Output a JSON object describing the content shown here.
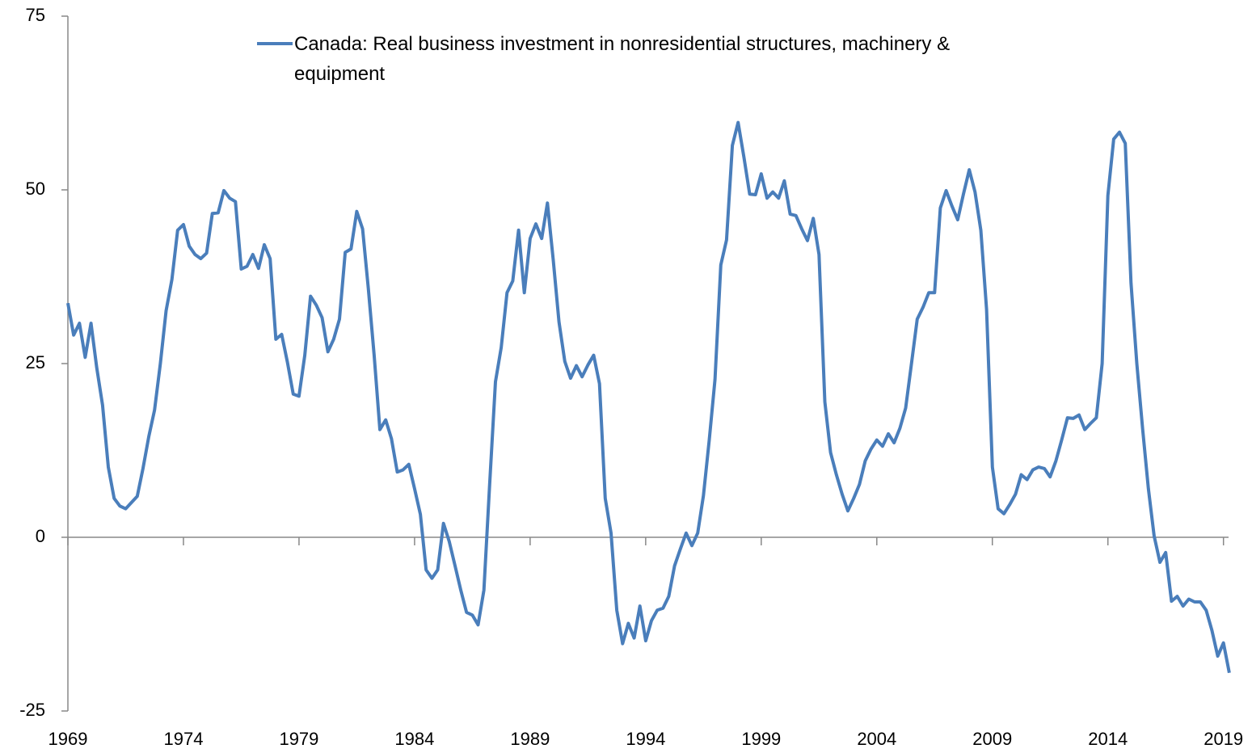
{
  "chart_data": {
    "type": "line",
    "x": [
      1969,
      1969.25,
      1969.5,
      1969.75,
      1970,
      1970.25,
      1970.5,
      1970.75,
      1971,
      1971.25,
      1971.5,
      1971.75,
      1972,
      1972.25,
      1972.5,
      1972.75,
      1973,
      1973.25,
      1973.5,
      1973.75,
      1974,
      1974.25,
      1974.5,
      1974.75,
      1975,
      1975.25,
      1975.5,
      1975.75,
      1976,
      1976.25,
      1976.5,
      1976.75,
      1977,
      1977.25,
      1977.5,
      1977.75,
      1978,
      1978.25,
      1978.5,
      1978.75,
      1979,
      1979.25,
      1979.5,
      1979.75,
      1980,
      1980.25,
      1980.5,
      1980.75,
      1981,
      1981.25,
      1981.5,
      1981.75,
      1982,
      1982.25,
      1982.5,
      1982.75,
      1983,
      1983.25,
      1983.5,
      1983.75,
      1984,
      1984.25,
      1984.5,
      1984.75,
      1985,
      1985.25,
      1985.5,
      1985.75,
      1986,
      1986.25,
      1986.5,
      1986.75,
      1987,
      1987.25,
      1987.5,
      1987.75,
      1988,
      1988.25,
      1988.5,
      1988.75,
      1989,
      1989.25,
      1989.5,
      1989.75,
      1990,
      1990.25,
      1990.5,
      1990.75,
      1991,
      1991.25,
      1991.5,
      1991.75,
      1992,
      1992.25,
      1992.5,
      1992.75,
      1993,
      1993.25,
      1993.5,
      1993.75,
      1994,
      1994.25,
      1994.5,
      1994.75,
      1995,
      1995.25,
      1995.5,
      1995.75,
      1996,
      1996.25,
      1996.5,
      1996.75,
      1997,
      1997.25,
      1997.5,
      1997.75,
      1998,
      1998.25,
      1998.5,
      1998.75,
      1999,
      1999.25,
      1999.5,
      1999.75,
      2000,
      2000.25,
      2000.5,
      2000.75,
      2001,
      2001.25,
      2001.5,
      2001.75,
      2002,
      2002.25,
      2002.5,
      2002.75,
      2003,
      2003.25,
      2003.5,
      2003.75,
      2004,
      2004.25,
      2004.5,
      2004.75,
      2005,
      2005.25,
      2005.5,
      2005.75,
      2006,
      2006.25,
      2006.5,
      2006.75,
      2007,
      2007.25,
      2007.5,
      2007.75,
      2008,
      2008.25,
      2008.5,
      2008.75,
      2009,
      2009.25,
      2009.5,
      2009.75,
      2010,
      2010.25,
      2010.5,
      2010.75,
      2011,
      2011.25,
      2011.5,
      2011.75,
      2012,
      2012.25,
      2012.5,
      2012.75,
      2013,
      2013.25,
      2013.5,
      2013.75,
      2014,
      2014.25,
      2014.5,
      2014.75,
      2015,
      2015.25,
      2015.5,
      2015.75,
      2016,
      2016.25,
      2016.5,
      2016.75,
      2017,
      2017.25,
      2017.5,
      2017.75,
      2018,
      2018.25,
      2018.5,
      2018.75,
      2019,
      2019.25
    ],
    "series": [
      {
        "name": "Canada: Real business investment in nonresidential structures, machinery & equipment",
        "color": "#4a7ebb",
        "values": [
          33.7,
          29.1,
          30.8,
          25.9,
          30.8,
          24.4,
          19.0,
          10.1,
          5.6,
          4.5,
          4.1,
          5.0,
          5.9,
          9.9,
          14.5,
          18.3,
          25.0,
          32.6,
          37.1,
          44.2,
          45.0,
          41.9,
          40.7,
          40.1,
          40.9,
          46.6,
          46.7,
          49.9,
          48.8,
          48.3,
          38.6,
          39.0,
          40.7,
          38.7,
          42.1,
          40.1,
          28.5,
          29.2,
          25.2,
          20.6,
          20.3,
          26.2,
          34.7,
          33.4,
          31.6,
          26.7,
          28.5,
          31.4,
          41.0,
          41.5,
          46.9,
          44.4,
          35.8,
          26.2,
          15.5,
          16.9,
          14.2,
          9.4,
          9.7,
          10.5,
          7.0,
          3.3,
          -4.7,
          -5.9,
          -4.7,
          2.0,
          -0.6,
          -4.1,
          -7.6,
          -10.8,
          -11.2,
          -12.6,
          -7.6,
          7.6,
          22.4,
          27.3,
          35.2,
          36.9,
          44.2,
          35.2,
          43.0,
          45.1,
          43.0,
          48.1,
          39.9,
          31.0,
          25.3,
          22.9,
          24.7,
          23.1,
          24.8,
          26.2,
          22.1,
          5.6,
          0.6,
          -10.5,
          -15.3,
          -12.4,
          -14.5,
          -9.9,
          -14.9,
          -12.0,
          -10.5,
          -10.2,
          -8.5,
          -4.1,
          -1.7,
          0.6,
          -1.2,
          0.6,
          6.0,
          14.0,
          22.7,
          39.2,
          42.8,
          56.4,
          59.7,
          54.7,
          49.4,
          49.3,
          52.3,
          48.8,
          49.7,
          48.8,
          51.3,
          46.5,
          46.3,
          44.4,
          42.7,
          45.9,
          40.7,
          19.5,
          12.2,
          9.0,
          6.2,
          3.8,
          5.6,
          7.6,
          11.0,
          12.7,
          14.0,
          13.1,
          14.9,
          13.6,
          15.7,
          18.6,
          25.0,
          31.4,
          33.1,
          35.2,
          35.2,
          47.4,
          49.9,
          47.7,
          45.7,
          49.4,
          52.9,
          49.7,
          44.2,
          32.8,
          10.1,
          4.1,
          3.4,
          4.7,
          6.2,
          9.0,
          8.3,
          9.7,
          10.1,
          9.9,
          8.7,
          11.0,
          14.0,
          17.2,
          17.1,
          17.6,
          15.5,
          16.4,
          17.2,
          25.0,
          49.2,
          57.3,
          58.3,
          56.7,
          36.6,
          25.0,
          15.7,
          7.0,
          0.2,
          -3.6,
          -2.2,
          -9.2,
          -8.5,
          -9.9,
          -8.9,
          -9.3,
          -9.3,
          -10.5,
          -13.4,
          -17.1,
          -15.2,
          -19.5
        ]
      }
    ],
    "xlim": [
      1969,
      2019.5
    ],
    "xticks": [
      1969,
      1974,
      1979,
      1984,
      1989,
      1994,
      1999,
      2004,
      2009,
      2014,
      2019
    ],
    "ylim": [
      -25,
      75
    ],
    "yticks": [
      -25,
      0,
      25,
      50,
      75
    ],
    "grid": false
  }
}
